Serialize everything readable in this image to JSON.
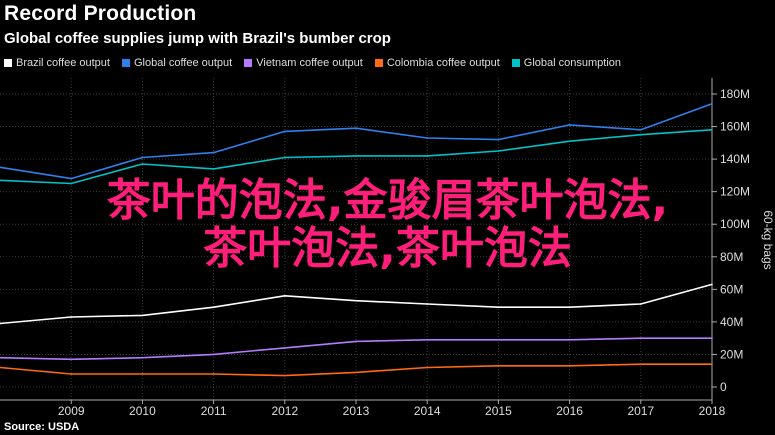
{
  "header": {
    "title": "Record Production",
    "subtitle": "Global coffee supplies jump with Brazil's bumber crop"
  },
  "overlay": {
    "line1": "茶叶的泡法,金骏眉茶叶泡法,",
    "line2": "茶叶泡法,茶叶泡法"
  },
  "footer": {
    "source": "Source: USDA"
  },
  "chart_data": {
    "type": "line",
    "title": "Record Production",
    "subtitle": "Global coffee supplies jump with Brazil's bumber crop",
    "xlabel": "",
    "ylabel": "60-kg bags",
    "x": [
      2008,
      2009,
      2010,
      2011,
      2012,
      2013,
      2014,
      2015,
      2016,
      2017,
      2018
    ],
    "x_tick_labels": [
      "2009",
      "2010",
      "2011",
      "2012",
      "2013",
      "2014",
      "2015",
      "2016",
      "2017",
      "2018"
    ],
    "y_tick_labels": [
      "0",
      "20M",
      "40M",
      "60M",
      "80M",
      "100M",
      "120M",
      "140M",
      "160M",
      "180M"
    ],
    "ylim": [
      0,
      185
    ],
    "grid": true,
    "legend_position": "top-left",
    "series": [
      {
        "name": "Brazil coffee output",
        "color": "#ffffff",
        "values": [
          39,
          43,
          44,
          49,
          56,
          53,
          51,
          49,
          49,
          51,
          63
        ]
      },
      {
        "name": "Global coffee output",
        "color": "#2f80ed",
        "values": [
          135,
          128,
          141,
          144,
          157,
          159,
          153,
          152,
          161,
          158,
          174
        ]
      },
      {
        "name": "Vietnam coffee output",
        "color": "#b57bff",
        "values": [
          18,
          17,
          18,
          20,
          24,
          28,
          29,
          29,
          29,
          30,
          30
        ]
      },
      {
        "name": "Colombia coffee output",
        "color": "#ff6a13",
        "values": [
          12,
          8,
          8,
          8,
          7,
          9,
          12,
          13,
          13,
          14,
          14
        ]
      },
      {
        "name": "Global consumption",
        "color": "#00c2c7",
        "values": [
          127,
          125,
          137,
          134,
          141,
          142,
          142,
          145,
          151,
          155,
          158
        ]
      }
    ]
  }
}
